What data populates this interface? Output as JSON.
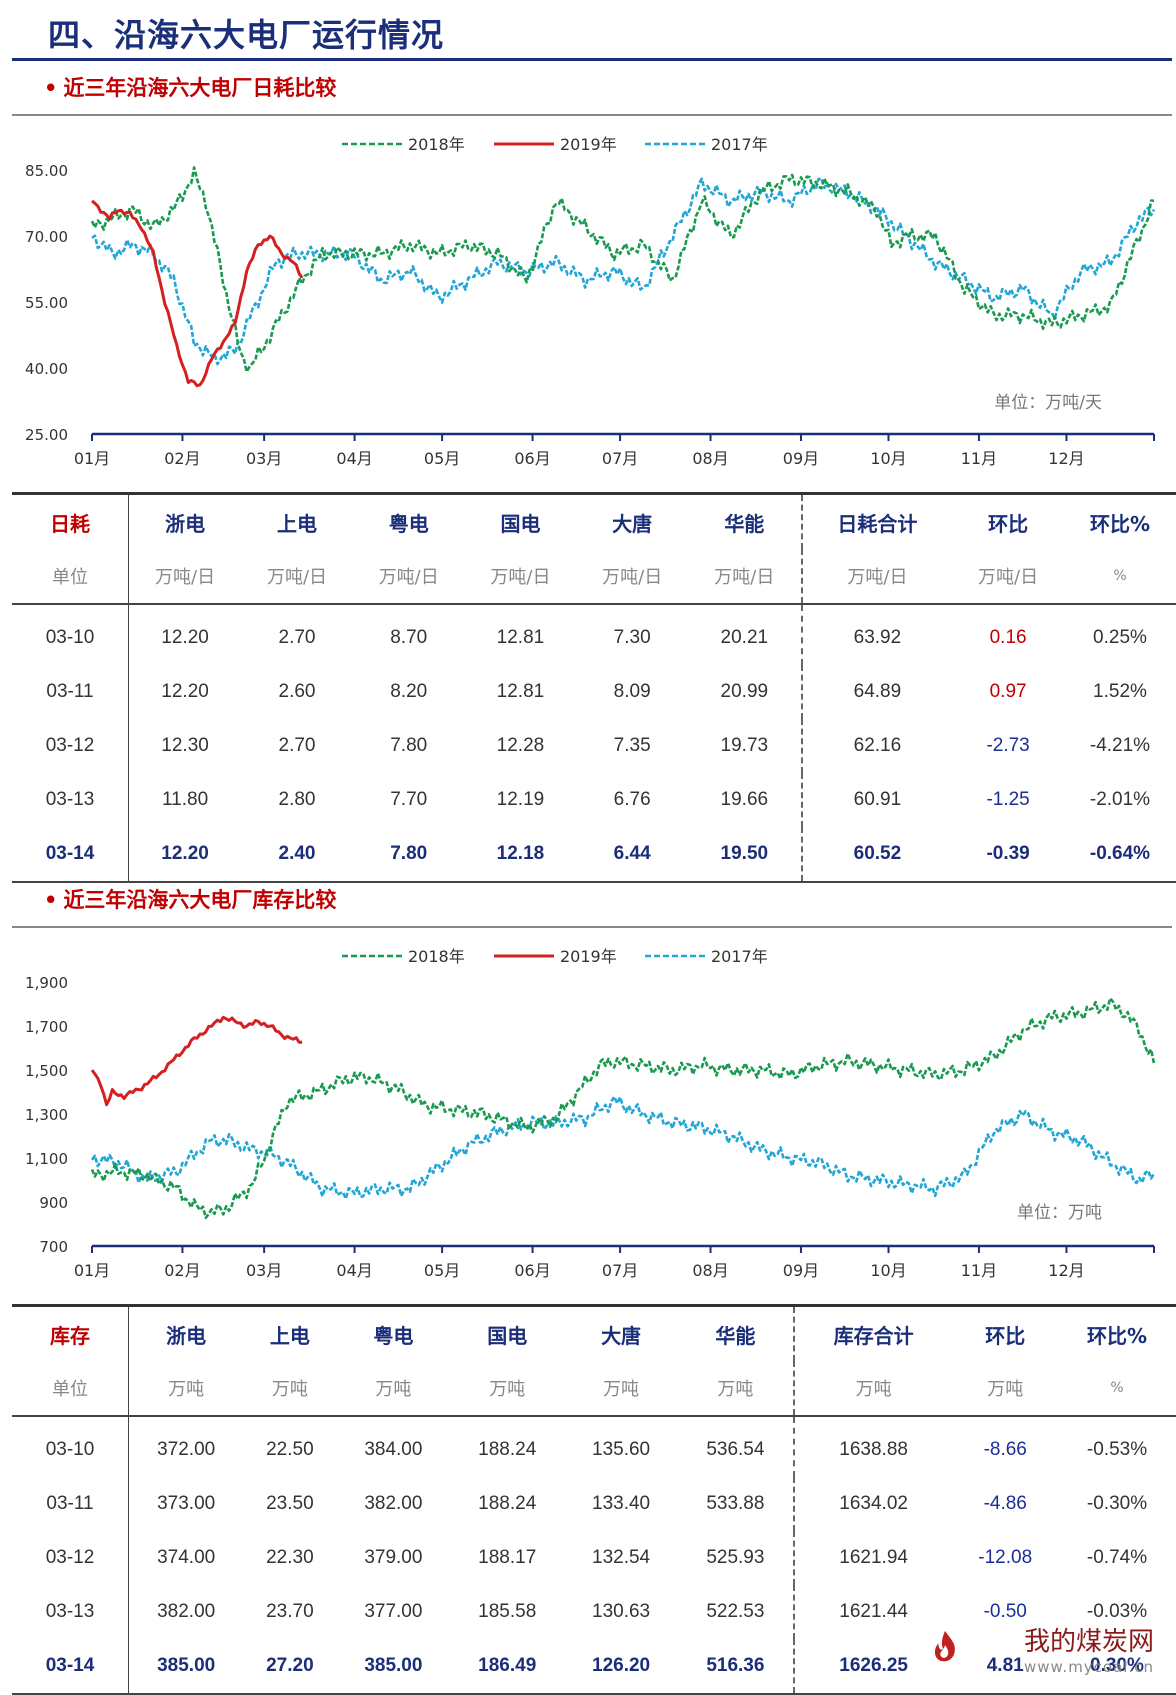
{
  "page": {
    "title": "四、沿海六大电厂运行情况"
  },
  "section1": {
    "title": "近三年沿海六大电厂日耗比较"
  },
  "section2": {
    "title": "近三年沿海六大电厂库存比较"
  },
  "colors": {
    "s2018": "#1a9a50",
    "s2019": "#d42020",
    "s2017": "#21a6d6"
  },
  "chart_data": [
    {
      "type": "line",
      "legend": [
        "2018年",
        "2019年",
        "2017年"
      ],
      "legend_position": "top-center",
      "unit_note": "单位：万吨/天",
      "ylim": [
        25,
        85
      ],
      "yticks": [
        "85.00",
        "70.00",
        "55.00",
        "40.00",
        "25.00"
      ],
      "xticks": [
        "01月",
        "02月",
        "03月",
        "04月",
        "05月",
        "06月",
        "07月",
        "08月",
        "09月",
        "10月",
        "11月",
        "12月"
      ],
      "series": [
        {
          "name": "2018年",
          "x_day": [
            1,
            8,
            15,
            22,
            29,
            36,
            40,
            46,
            52,
            55,
            60,
            66,
            73,
            80,
            90,
            100,
            110,
            120,
            130,
            140,
            150,
            160,
            170,
            180,
            190,
            200,
            210,
            220,
            230,
            240,
            250,
            260,
            270,
            275,
            280,
            290,
            300,
            310,
            320,
            330,
            340,
            350,
            360,
            365
          ],
          "values": [
            72,
            74,
            76,
            72,
            76,
            84,
            78,
            60,
            43,
            40,
            45,
            52,
            60,
            66,
            66,
            66,
            68,
            66,
            68,
            66,
            60,
            78,
            72,
            66,
            68,
            60,
            78,
            70,
            80,
            83,
            82,
            80,
            76,
            68,
            70,
            70,
            58,
            52,
            52,
            50,
            52,
            54,
            70,
            78
          ]
        },
        {
          "name": "2019年",
          "x_day": [
            1,
            4,
            7,
            10,
            14,
            18,
            22,
            26,
            30,
            34,
            38,
            42,
            46,
            50,
            54,
            58,
            62,
            66,
            70,
            73
          ],
          "values": [
            78,
            76,
            74,
            76,
            75,
            72,
            66,
            55,
            45,
            37,
            36,
            42,
            46,
            50,
            62,
            68,
            70,
            66,
            64,
            60.52
          ]
        },
        {
          "name": "2017年",
          "x_day": [
            1,
            8,
            15,
            22,
            29,
            36,
            43,
            50,
            57,
            64,
            71,
            78,
            90,
            100,
            110,
            120,
            130,
            140,
            150,
            160,
            170,
            180,
            190,
            200,
            210,
            220,
            230,
            240,
            250,
            260,
            270,
            280,
            290,
            300,
            310,
            320,
            330,
            340,
            350,
            360,
            365
          ],
          "values": [
            70,
            66,
            68,
            66,
            60,
            46,
            42,
            44,
            54,
            64,
            66,
            66,
            66,
            60,
            62,
            56,
            60,
            64,
            62,
            64,
            60,
            62,
            58,
            70,
            82,
            78,
            80,
            78,
            82,
            80,
            76,
            70,
            64,
            60,
            56,
            58,
            52,
            62,
            64,
            74,
            76
          ]
        }
      ]
    },
    {
      "type": "line",
      "legend": [
        "2018年",
        "2019年",
        "2017年"
      ],
      "legend_position": "top-center",
      "unit_note": "单位：万吨",
      "ylim": [
        700,
        1900
      ],
      "yticks": [
        "1,900",
        "1,700",
        "1,500",
        "1,300",
        "1,100",
        "900",
        "700"
      ],
      "xticks": [
        "01月",
        "02月",
        "03月",
        "04月",
        "05月",
        "06月",
        "07月",
        "08月",
        "09月",
        "10月",
        "11月",
        "12月"
      ],
      "series": [
        {
          "name": "2018年",
          "x_day": [
            1,
            10,
            20,
            30,
            36,
            42,
            48,
            56,
            60,
            68,
            78,
            88,
            95,
            105,
            115,
            125,
            135,
            150,
            160,
            175,
            180,
            190,
            200,
            210,
            220,
            230,
            240,
            250,
            260,
            270,
            280,
            290,
            300,
            310,
            320,
            330,
            340,
            350,
            355,
            360,
            365
          ],
          "values": [
            1020,
            1040,
            1020,
            960,
            880,
            850,
            880,
            980,
            1100,
            1360,
            1400,
            1460,
            1470,
            1420,
            1340,
            1320,
            1300,
            1240,
            1280,
            1520,
            1540,
            1520,
            1500,
            1520,
            1500,
            1500,
            1480,
            1520,
            1540,
            1520,
            1500,
            1480,
            1500,
            1560,
            1680,
            1740,
            1760,
            1800,
            1760,
            1680,
            1530
          ]
        },
        {
          "name": "2019年",
          "x_day": [
            1,
            4,
            6,
            8,
            12,
            18,
            24,
            30,
            36,
            42,
            46,
            50,
            54,
            58,
            62,
            66,
            70,
            73
          ],
          "values": [
            1500,
            1440,
            1340,
            1400,
            1380,
            1420,
            1480,
            1560,
            1640,
            1700,
            1740,
            1720,
            1700,
            1720,
            1700,
            1660,
            1640,
            1626.25
          ]
        },
        {
          "name": "2017年",
          "x_day": [
            1,
            10,
            20,
            30,
            38,
            42,
            48,
            55,
            62,
            68,
            80,
            90,
            100,
            110,
            120,
            130,
            140,
            150,
            160,
            170,
            180,
            190,
            200,
            210,
            220,
            230,
            240,
            250,
            260,
            270,
            280,
            290,
            300,
            310,
            320,
            330,
            340,
            350,
            360,
            365
          ],
          "values": [
            1100,
            1080,
            1000,
            1040,
            1140,
            1180,
            1180,
            1140,
            1120,
            1080,
            960,
            940,
            960,
            960,
            1060,
            1160,
            1220,
            1260,
            1260,
            1280,
            1360,
            1300,
            1260,
            1240,
            1200,
            1140,
            1100,
            1080,
            1020,
            1000,
            980,
            960,
            1020,
            1220,
            1300,
            1220,
            1180,
            1080,
            1000,
            1030
          ]
        }
      ]
    }
  ],
  "table1": {
    "headers": [
      "日耗",
      "浙电",
      "上电",
      "粤电",
      "国电",
      "大唐",
      "华能",
      "日耗合计",
      "环比",
      "环比%"
    ],
    "units": [
      "单位",
      "万吨/日",
      "万吨/日",
      "万吨/日",
      "万吨/日",
      "万吨/日",
      "万吨/日",
      "万吨/日",
      "万吨/日",
      "%"
    ],
    "rows": [
      [
        "03-10",
        "12.20",
        "2.70",
        "8.70",
        "12.81",
        "7.30",
        "20.21",
        "63.92",
        "0.16",
        "0.25%"
      ],
      [
        "03-11",
        "12.20",
        "2.60",
        "8.20",
        "12.81",
        "8.09",
        "20.99",
        "64.89",
        "0.97",
        "1.52%"
      ],
      [
        "03-12",
        "12.30",
        "2.70",
        "7.80",
        "12.28",
        "7.35",
        "19.73",
        "62.16",
        "-2.73",
        "-4.21%"
      ],
      [
        "03-13",
        "11.80",
        "2.80",
        "7.70",
        "12.19",
        "6.76",
        "19.66",
        "60.91",
        "-1.25",
        "-2.01%"
      ],
      [
        "03-14",
        "12.20",
        "2.40",
        "7.80",
        "12.18",
        "6.44",
        "19.50",
        "60.52",
        "-0.39",
        "-0.64%"
      ]
    ]
  },
  "table2": {
    "headers": [
      "库存",
      "浙电",
      "上电",
      "粤电",
      "国电",
      "大唐",
      "华能",
      "库存合计",
      "环比",
      "环比%"
    ],
    "units": [
      "单位",
      "万吨",
      "万吨",
      "万吨",
      "万吨",
      "万吨",
      "万吨",
      "万吨",
      "万吨",
      "%"
    ],
    "rows": [
      [
        "03-10",
        "372.00",
        "22.50",
        "384.00",
        "188.24",
        "135.60",
        "536.54",
        "1638.88",
        "-8.66",
        "-0.53%"
      ],
      [
        "03-11",
        "373.00",
        "23.50",
        "382.00",
        "188.24",
        "133.40",
        "533.88",
        "1634.02",
        "-4.86",
        "-0.30%"
      ],
      [
        "03-12",
        "374.00",
        "22.30",
        "379.00",
        "188.17",
        "132.54",
        "525.93",
        "1621.94",
        "-12.08",
        "-0.74%"
      ],
      [
        "03-13",
        "382.00",
        "23.70",
        "377.00",
        "185.58",
        "130.63",
        "522.53",
        "1621.44",
        "-0.50",
        "-0.03%"
      ],
      [
        "03-14",
        "385.00",
        "27.20",
        "385.00",
        "186.49",
        "126.20",
        "516.36",
        "1626.25",
        "4.81",
        "0.30%"
      ]
    ]
  },
  "watermark": {
    "text": "我的煤炭网",
    "url": "www.mycoal.cn"
  }
}
